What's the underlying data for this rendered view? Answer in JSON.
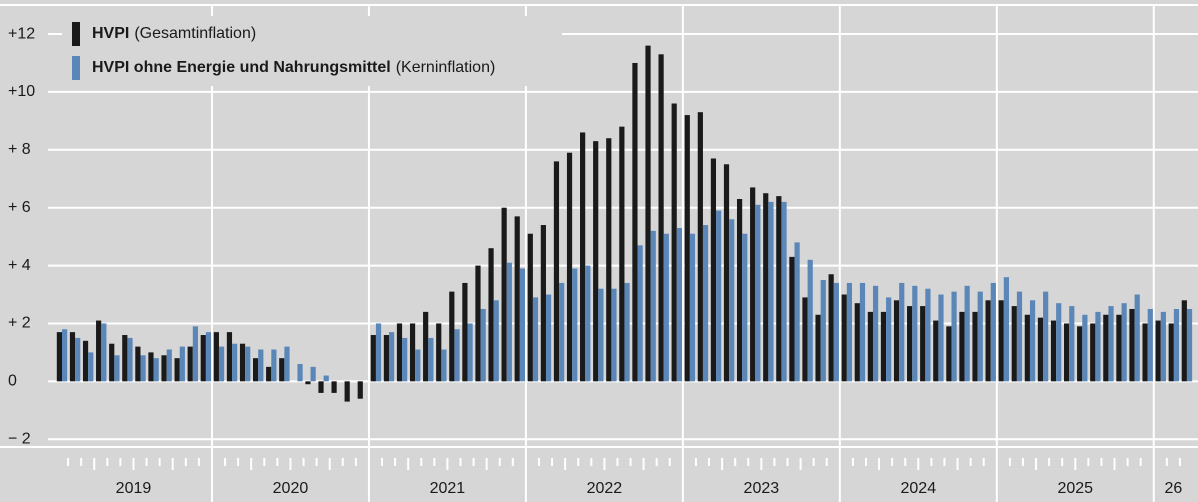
{
  "chart_data": {
    "type": "bar",
    "categories": [
      null,
      null,
      null,
      null,
      null,
      null,
      null,
      null,
      null,
      null,
      null,
      null,
      null,
      null,
      null,
      null,
      null,
      null,
      null,
      null,
      null,
      null,
      null,
      null,
      null,
      null,
      null,
      null,
      null,
      null,
      null,
      null,
      null,
      null,
      null,
      null,
      null,
      null,
      null,
      null,
      null,
      null,
      null,
      null,
      null,
      null,
      null,
      null,
      null,
      null,
      null,
      null,
      null,
      null,
      null,
      null,
      null,
      null,
      null,
      null,
      null,
      null,
      null,
      null,
      null,
      null,
      null,
      null,
      null,
      null,
      null,
      null,
      null,
      null,
      null,
      null,
      null,
      null,
      null,
      null,
      null,
      null,
      null,
      null,
      null,
      null,
      null
    ],
    "year_labels": [
      "2019",
      "2020",
      "2021",
      "2022",
      "2023",
      "2024",
      "2025",
      "26"
    ],
    "series": [
      {
        "name": "HVPI",
        "description": "(Gesamtinflation)",
        "color": "#1a1a1a",
        "values": [
          1.7,
          1.7,
          1.4,
          2.1,
          1.3,
          1.6,
          1.2,
          1.0,
          0.9,
          0.8,
          1.2,
          1.6,
          1.7,
          1.7,
          1.3,
          0.8,
          0.5,
          0.8,
          0.0,
          -0.1,
          -0.4,
          -0.4,
          -0.7,
          -0.6,
          1.6,
          1.6,
          2.0,
          2.0,
          2.4,
          2.0,
          3.1,
          3.4,
          4.0,
          4.6,
          6.0,
          5.7,
          5.1,
          5.4,
          7.6,
          7.9,
          8.6,
          8.3,
          8.4,
          8.8,
          11.0,
          11.6,
          11.3,
          9.6,
          9.2,
          9.3,
          7.7,
          7.5,
          6.3,
          6.7,
          6.5,
          6.4,
          4.3,
          2.9,
          2.3,
          3.7,
          3.0,
          2.7,
          2.4,
          2.4,
          2.8,
          2.6,
          2.6,
          2.1,
          1.9,
          2.4,
          2.4,
          2.8,
          2.8,
          2.6,
          2.3,
          2.2,
          2.1,
          2.0,
          1.9,
          2.0,
          2.3,
          2.3,
          2.5,
          2.0,
          2.1,
          2.0,
          2.8
        ]
      },
      {
        "name": "HVPI ohne Energie und Nahrungsmittel",
        "description": "(Kerninflation)",
        "color": "#5b87b8",
        "values": [
          1.8,
          1.5,
          1.0,
          2.0,
          0.9,
          1.5,
          0.9,
          0.8,
          1.1,
          1.2,
          1.9,
          1.7,
          1.2,
          1.3,
          1.2,
          1.1,
          1.1,
          1.2,
          0.6,
          0.5,
          0.2,
          0.0,
          0.0,
          0.0,
          2.0,
          1.7,
          1.5,
          1.1,
          1.5,
          1.1,
          1.8,
          2.0,
          2.5,
          2.8,
          4.1,
          3.9,
          2.9,
          3.0,
          3.4,
          3.9,
          4.0,
          3.2,
          3.2,
          3.4,
          4.7,
          5.2,
          5.1,
          5.3,
          5.1,
          5.4,
          5.9,
          5.6,
          5.1,
          6.1,
          6.2,
          6.2,
          4.8,
          4.2,
          3.5,
          3.4,
          3.4,
          3.4,
          3.3,
          2.9,
          3.4,
          3.3,
          3.2,
          3.0,
          3.1,
          3.3,
          3.1,
          3.4,
          3.6,
          3.1,
          2.8,
          3.1,
          2.7,
          2.6,
          2.3,
          2.4,
          2.6,
          2.7,
          3.0,
          2.5,
          2.4,
          2.5,
          2.5
        ]
      }
    ],
    "ylim": [
      -2.2,
      12.9
    ],
    "yticks": [
      {
        "value": -2,
        "label": "− 2"
      },
      0,
      {
        "value": 2,
        "label": "+ 2"
      },
      {
        "value": 4,
        "label": "+ 4"
      },
      {
        "value": 6,
        "label": "+ 6"
      },
      {
        "value": 8,
        "label": "+ 8"
      },
      {
        "value": 10,
        "label": "+10"
      },
      {
        "value": 12,
        "label": "+12"
      }
    ],
    "grid": true
  }
}
